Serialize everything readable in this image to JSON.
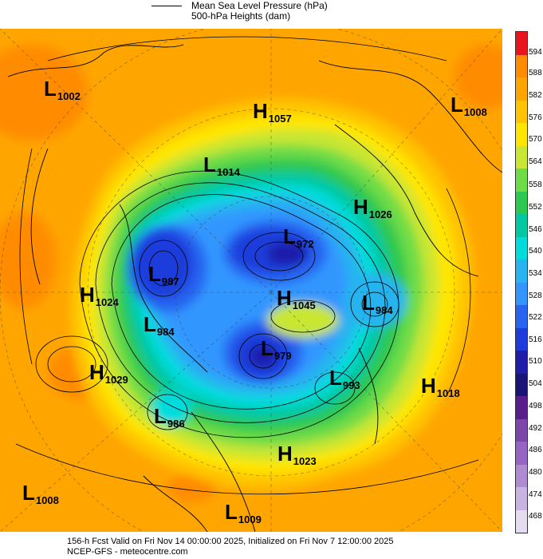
{
  "legend": {
    "line1": "Mean Sea Level Pressure (hPa)",
    "line2": "500-hPa Heights (dam)"
  },
  "footer": {
    "line1": "156-h Fcst Valid on Fri Nov 14 00:00:00 2025, Initialized on Fri Nov  7 12:00:00 2025",
    "line2": "NCEP-GFS  - meteocentre.com"
  },
  "colorbar": {
    "labels": [
      "594",
      "588",
      "582",
      "576",
      "570",
      "564",
      "558",
      "552",
      "546",
      "540",
      "534",
      "528",
      "522",
      "516",
      "510",
      "504",
      "498",
      "492",
      "486",
      "480",
      "474",
      "468"
    ],
    "colors": [
      "#e8141e",
      "#ff8c00",
      "#ffa500",
      "#ffc400",
      "#ffe600",
      "#c8e632",
      "#6edc46",
      "#2dc850",
      "#00c8a0",
      "#00dcdc",
      "#28b4f0",
      "#3296ff",
      "#2864f0",
      "#1e3cdc",
      "#1e1eaa",
      "#191478",
      "#5a1e8c",
      "#7d46aa",
      "#9664c3",
      "#af8cd2",
      "#c8b4e1",
      "#e6dcf0"
    ]
  },
  "pressure_centers": [
    {
      "type": "L",
      "value": "1002"
    },
    {
      "type": "H",
      "value": "1057"
    },
    {
      "type": "L",
      "value": "1008"
    },
    {
      "type": "L",
      "value": "1014"
    },
    {
      "type": "H",
      "value": "1026"
    },
    {
      "type": "L",
      "value": "972"
    },
    {
      "type": "L",
      "value": "987"
    },
    {
      "type": "H",
      "value": "1024"
    },
    {
      "type": "H",
      "value": "1045"
    },
    {
      "type": "L",
      "value": "984"
    },
    {
      "type": "L",
      "value": "984"
    },
    {
      "type": "L",
      "value": "979"
    },
    {
      "type": "H",
      "value": "1029"
    },
    {
      "type": "L",
      "value": "993"
    },
    {
      "type": "H",
      "value": "1018"
    },
    {
      "type": "L",
      "value": "986"
    },
    {
      "type": "H",
      "value": "1023"
    },
    {
      "type": "L",
      "value": "1008"
    },
    {
      "type": "L",
      "value": "1009"
    }
  ]
}
